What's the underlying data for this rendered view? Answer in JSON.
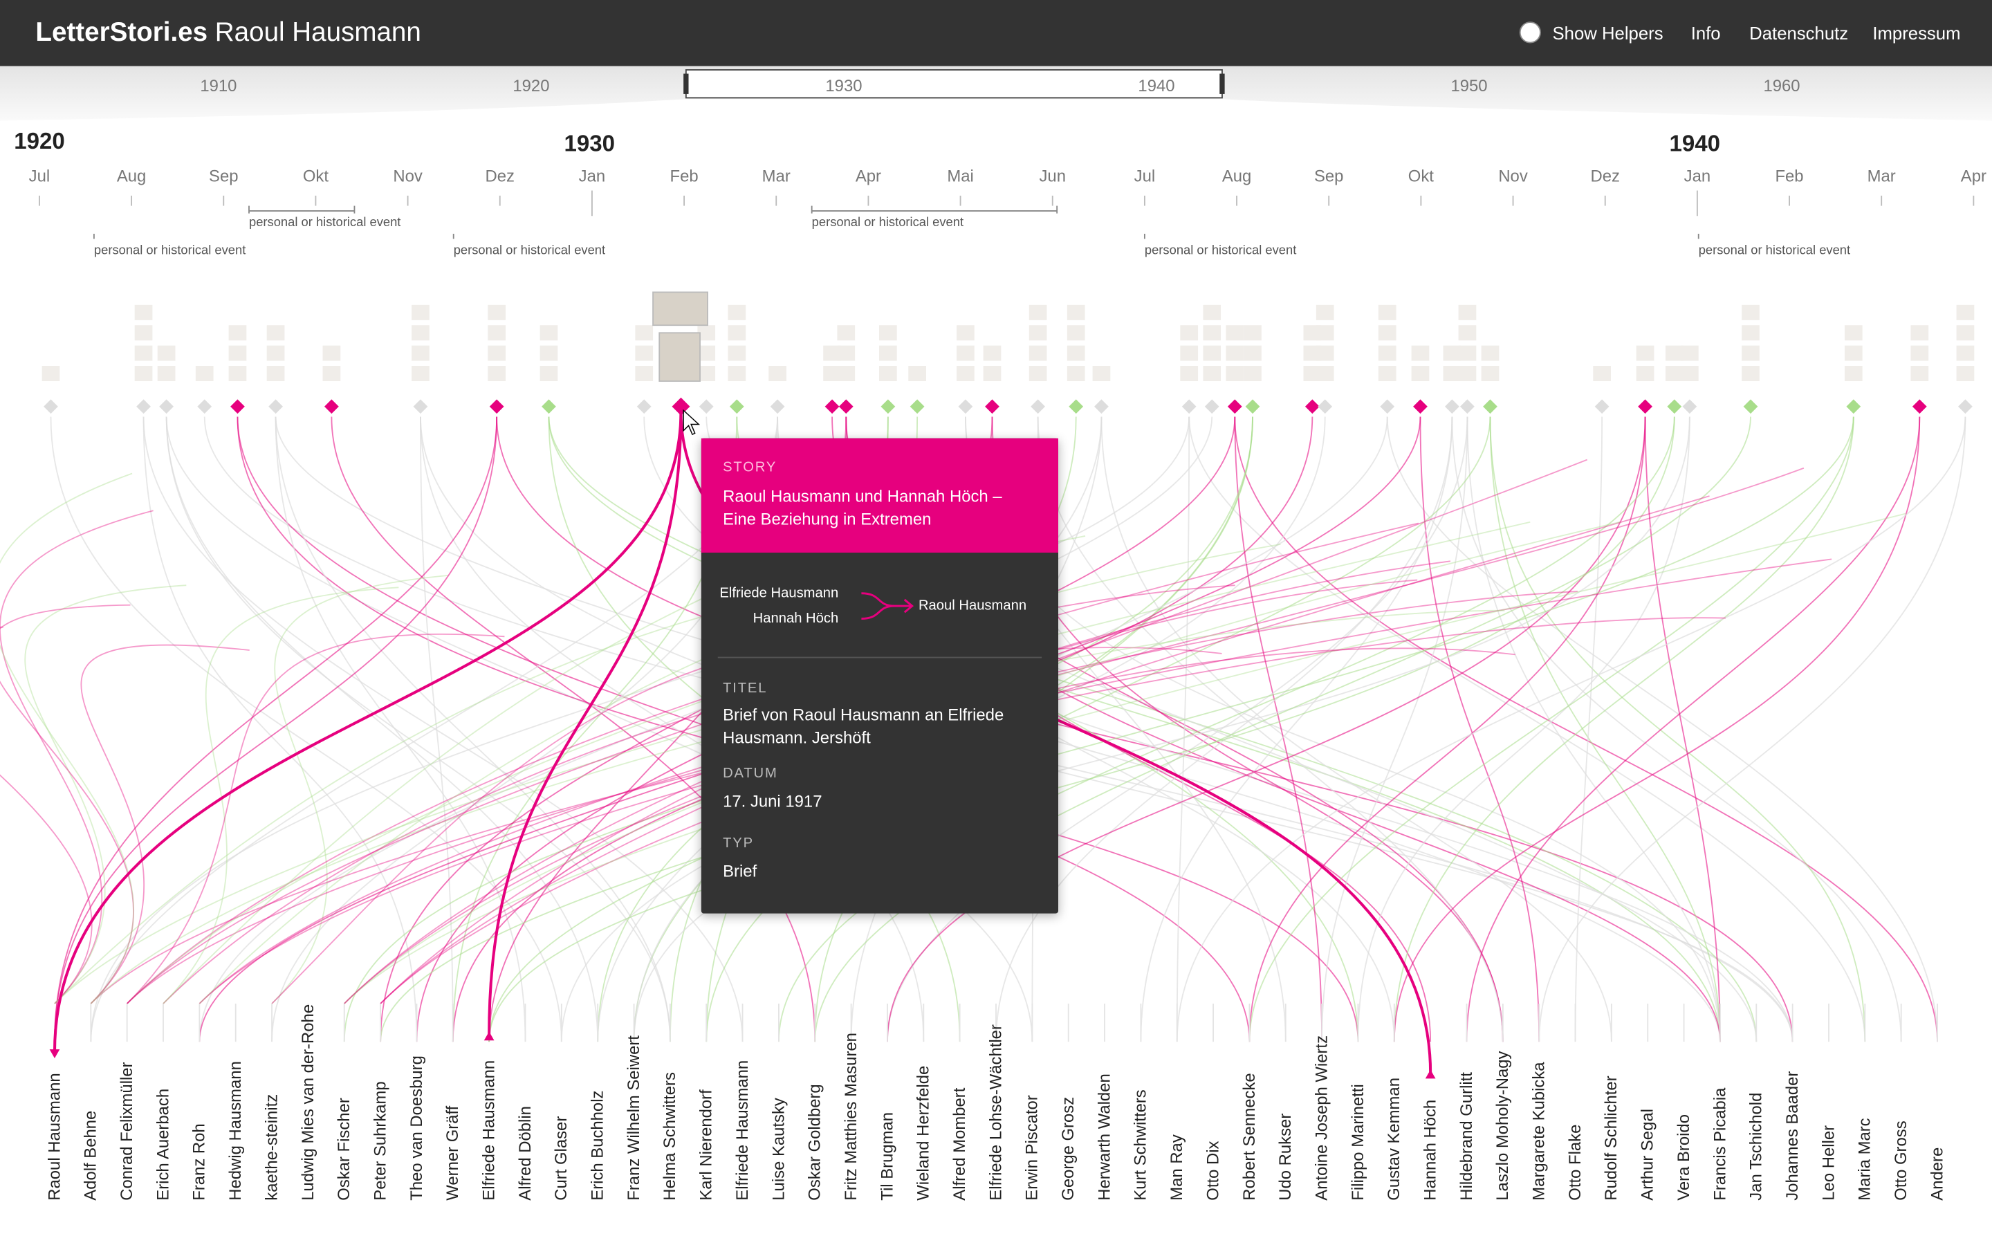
{
  "header": {
    "brand": "LetterStori.es",
    "subject": "Raoul Hausmann",
    "nav": [
      "Show Helpers",
      "Info",
      "Datenschutz",
      "Impressum"
    ]
  },
  "overview": {
    "years": [
      "1910",
      "1920",
      "1930",
      "1940",
      "1950",
      "1960"
    ]
  },
  "timeline": {
    "years": [
      "1920",
      "1930",
      "1940"
    ],
    "months": [
      "Jul",
      "Aug",
      "Sep",
      "Okt",
      "Nov",
      "Dez",
      "Jan",
      "Feb",
      "Mar",
      "Apr",
      "Mai",
      "Jun",
      "Jul",
      "Aug",
      "Sep",
      "Okt",
      "Nov",
      "Dez",
      "Jan",
      "Feb",
      "Mar",
      "Apr"
    ],
    "events": [
      "personal or historical event",
      "personal or historical event",
      "personal or historical event",
      "personal or historical event",
      "personal or historical event",
      "personal or historical event"
    ]
  },
  "tooltip": {
    "story_label": "STORY",
    "story": "Raoul Hausmann und Hannah Höch – Eine Beziehung in Extremen",
    "senders": [
      "Elfriede Hausmann",
      "Hannah Höch"
    ],
    "recipient": "Raoul Hausmann",
    "fields": [
      {
        "label": "TITEL",
        "value": "Brief von Raoul Hausmann an Elfriede Hausmann. Jershöft"
      },
      {
        "label": "DATUM",
        "value": "17. Juni 1917"
      },
      {
        "label": "TYP",
        "value": "Brief"
      }
    ]
  },
  "persons": [
    "Raoul Hausmann",
    "Adolf Behne",
    "Conrad Felixmüller",
    "Erich Auerbach",
    "Franz Roh",
    "Hedwig Hausmann",
    "kaethe-steinitz",
    "Ludwig Mies van der-Rohe",
    "Oskar Fischer",
    "Peter Suhrkamp",
    "Theo van Doesburg",
    "Werner Gräff",
    "Elfriede Hausmann",
    "Alfred Döblin",
    "Curt Glaser",
    "Erich Buchholz",
    "Franz Wilhelm Seiwert",
    "Helma Schwitters",
    "Karl Nierendorf",
    "Elfriede Hausmann",
    "Luise Kautsky",
    "Oskar Goldberg",
    "Fritz Matthies Masuren",
    "Til Brugman",
    "Wieland Herzfelde",
    "Alfred Mombert",
    "Elfriede Lohse-Wächtler",
    "Erwin Piscator",
    "George Grosz",
    "Herwarth Walden",
    "Kurt Schwitters",
    "Man Ray",
    "Otto Dix",
    "Robert Sennecke",
    "Udo Rukser",
    "Antoine Joseph Wiertz",
    "Filippo Marinetti",
    "Gustav Kemman",
    "Hannah Höch",
    "Hildebrand Gurlitt",
    "Laszlo Moholy-Nagy",
    "Margarete Kubicka",
    "Otto Flake",
    "Rudolf Schlichter",
    "Arthur Segal",
    "Vera Broido",
    "Francis Picabia",
    "Jan Tschichold",
    "Johannes Baader",
    "Leo Heller",
    "Maria Marc",
    "Otto Gross",
    "Andere"
  ]
}
